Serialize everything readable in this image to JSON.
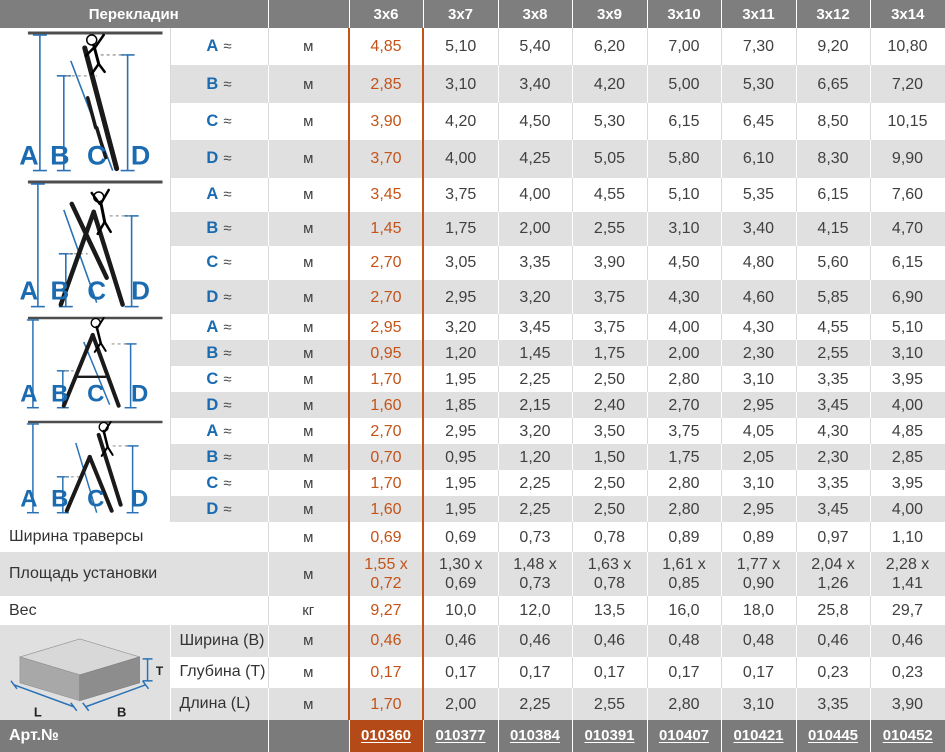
{
  "symbols": {
    "approx": "≈"
  },
  "colors": {
    "header_gray": "#7e7e7e",
    "row_gray": "#e0e0e0",
    "accent_orange": "#c35318",
    "art_orange_bg": "#b34a18",
    "dimension_blue": "#1b6bb0",
    "text_dark": "#404040"
  },
  "header": {
    "title": "Перекладин",
    "columns": [
      "3x6",
      "3x7",
      "3x8",
      "3x9",
      "3x10",
      "3x11",
      "3x12",
      "3x14"
    ]
  },
  "groups": [
    {
      "diagram": "leaning-extended-ladder",
      "rows": [
        {
          "label": "A",
          "unit": "м",
          "values": [
            "4,85",
            "5,10",
            "5,40",
            "6,20",
            "7,00",
            "7,30",
            "9,20",
            "10,80"
          ]
        },
        {
          "label": "B",
          "unit": "м",
          "values": [
            "2,85",
            "3,10",
            "3,40",
            "4,20",
            "5,00",
            "5,30",
            "6,65",
            "7,20"
          ]
        },
        {
          "label": "C",
          "unit": "м",
          "values": [
            "3,90",
            "4,20",
            "4,50",
            "5,30",
            "6,15",
            "6,45",
            "8,50",
            "10,15"
          ]
        },
        {
          "label": "D",
          "unit": "м",
          "values": [
            "3,70",
            "4,00",
            "4,25",
            "5,05",
            "5,80",
            "6,10",
            "8,30",
            "9,90"
          ]
        }
      ]
    },
    {
      "diagram": "a-frame-with-extension",
      "rows": [
        {
          "label": "A",
          "unit": "м",
          "values": [
            "3,45",
            "3,75",
            "4,00",
            "4,55",
            "5,10",
            "5,35",
            "6,15",
            "7,60"
          ]
        },
        {
          "label": "B",
          "unit": "м",
          "values": [
            "1,45",
            "1,75",
            "2,00",
            "2,55",
            "3,10",
            "3,40",
            "4,15",
            "4,70"
          ]
        },
        {
          "label": "C",
          "unit": "м",
          "values": [
            "2,70",
            "3,05",
            "3,35",
            "3,90",
            "4,50",
            "4,80",
            "5,60",
            "6,15"
          ]
        },
        {
          "label": "D",
          "unit": "м",
          "values": [
            "2,70",
            "2,95",
            "3,20",
            "3,75",
            "4,30",
            "4,60",
            "5,85",
            "6,90"
          ]
        }
      ]
    },
    {
      "diagram": "stepladder",
      "rows": [
        {
          "label": "A",
          "unit": "м",
          "values": [
            "2,95",
            "3,20",
            "3,45",
            "3,75",
            "4,00",
            "4,30",
            "4,55",
            "5,10"
          ]
        },
        {
          "label": "B",
          "unit": "м",
          "values": [
            "0,95",
            "1,20",
            "1,45",
            "1,75",
            "2,00",
            "2,30",
            "2,55",
            "3,10"
          ]
        },
        {
          "label": "C",
          "unit": "м",
          "values": [
            "1,70",
            "1,95",
            "2,25",
            "2,50",
            "2,80",
            "3,10",
            "3,35",
            "3,95"
          ]
        },
        {
          "label": "D",
          "unit": "м",
          "values": [
            "1,60",
            "1,85",
            "2,15",
            "2,40",
            "2,70",
            "2,95",
            "3,45",
            "4,00"
          ]
        }
      ]
    },
    {
      "diagram": "stepladder-with-tilted-section",
      "rows": [
        {
          "label": "A",
          "unit": "м",
          "values": [
            "2,70",
            "2,95",
            "3,20",
            "3,50",
            "3,75",
            "4,05",
            "4,30",
            "4,85"
          ]
        },
        {
          "label": "B",
          "unit": "м",
          "values": [
            "0,70",
            "0,95",
            "1,20",
            "1,50",
            "1,75",
            "2,05",
            "2,30",
            "2,85"
          ]
        },
        {
          "label": "C",
          "unit": "м",
          "values": [
            "1,70",
            "1,95",
            "2,25",
            "2,50",
            "2,80",
            "3,10",
            "3,35",
            "3,95"
          ]
        },
        {
          "label": "D",
          "unit": "м",
          "values": [
            "1,60",
            "1,95",
            "2,25",
            "2,50",
            "2,80",
            "2,95",
            "3,45",
            "4,00"
          ]
        }
      ]
    }
  ],
  "extra_rows": [
    {
      "label": "Ширина траверсы",
      "unit": "м",
      "values": [
        "0,69",
        "0,69",
        "0,73",
        "0,78",
        "0,89",
        "0,89",
        "0,97",
        "1,10"
      ]
    },
    {
      "label": "Площадь установки",
      "unit": "м",
      "values": [
        "1,55 x\n0,72",
        "1,30 x\n0,69",
        "1,48 x\n0,73",
        "1,63 x\n0,78",
        "1,61 x\n0,85",
        "1,77 x\n0,90",
        "2,04 x\n1,26",
        "2,28 x\n1,41"
      ]
    },
    {
      "label": "Вес",
      "unit": "кг",
      "values": [
        "9,27",
        "10,0",
        "12,0",
        "13,5",
        "16,0",
        "18,0",
        "25,8",
        "29,7"
      ]
    }
  ],
  "dim_rows": [
    {
      "label": "Ширина (B)",
      "unit": "м",
      "values": [
        "0,46",
        "0,46",
        "0,46",
        "0,46",
        "0,48",
        "0,48",
        "0,46",
        "0,46"
      ]
    },
    {
      "label": "Глубина (Т)",
      "unit": "м",
      "values": [
        "0,17",
        "0,17",
        "0,17",
        "0,17",
        "0,17",
        "0,17",
        "0,23",
        "0,23"
      ]
    },
    {
      "label": "Длина (L)",
      "unit": "м",
      "values": [
        "1,70",
        "2,00",
        "2,25",
        "2,55",
        "2,80",
        "3,10",
        "3,35",
        "3,90"
      ]
    }
  ],
  "art": {
    "label": "Арт.№",
    "values": [
      "010360",
      "010377",
      "010384",
      "010391",
      "010407",
      "010421",
      "010445",
      "010452"
    ]
  }
}
